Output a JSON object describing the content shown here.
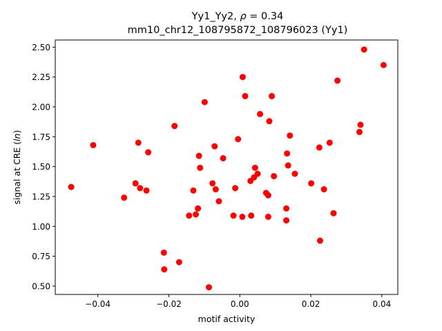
{
  "chart_data": {
    "type": "scatter",
    "title_line1": "Yy1_Yy2, ρ = 0.34",
    "title_line2": "mm10_chr12_108795872_108796023 (Yy1)",
    "xlabel": "motif activity",
    "ylabel": "signal at CRE (ln)",
    "xlim": [
      -0.052,
      0.0445
    ],
    "ylim": [
      0.43,
      2.56
    ],
    "x_ticks": [
      -0.04,
      -0.02,
      0.0,
      0.02,
      0.04
    ],
    "x_tick_labels": [
      "−0.04",
      "−0.02",
      "0.00",
      "0.02",
      "0.04"
    ],
    "y_ticks": [
      0.5,
      0.75,
      1.0,
      1.25,
      1.5,
      1.75,
      2.0,
      2.25,
      2.5
    ],
    "y_tick_labels": [
      "0.50",
      "0.75",
      "1.00",
      "1.25",
      "1.50",
      "1.75",
      "2.00",
      "2.25",
      "2.50"
    ],
    "marker_color": "#ff0000",
    "grid": false,
    "points": [
      {
        "x": -0.0475,
        "y": 1.33
      },
      {
        "x": -0.0413,
        "y": 1.68
      },
      {
        "x": -0.0326,
        "y": 1.24
      },
      {
        "x": -0.0294,
        "y": 1.36
      },
      {
        "x": -0.0286,
        "y": 1.7
      },
      {
        "x": -0.0281,
        "y": 1.32
      },
      {
        "x": -0.0263,
        "y": 1.3
      },
      {
        "x": -0.0258,
        "y": 1.62
      },
      {
        "x": -0.0214,
        "y": 0.78
      },
      {
        "x": -0.0213,
        "y": 0.64
      },
      {
        "x": -0.0184,
        "y": 1.84
      },
      {
        "x": -0.0171,
        "y": 0.7
      },
      {
        "x": -0.0143,
        "y": 1.09
      },
      {
        "x": -0.0131,
        "y": 1.3
      },
      {
        "x": -0.0124,
        "y": 1.1
      },
      {
        "x": -0.0118,
        "y": 1.15
      },
      {
        "x": -0.0115,
        "y": 1.59
      },
      {
        "x": -0.0112,
        "y": 1.49
      },
      {
        "x": -0.0099,
        "y": 2.04
      },
      {
        "x": -0.0087,
        "y": 0.49
      },
      {
        "x": -0.0077,
        "y": 1.36
      },
      {
        "x": -0.0071,
        "y": 1.67
      },
      {
        "x": -0.0068,
        "y": 1.31
      },
      {
        "x": -0.0059,
        "y": 1.21
      },
      {
        "x": -0.0047,
        "y": 1.57
      },
      {
        "x": -0.0018,
        "y": 1.09
      },
      {
        "x": -0.0013,
        "y": 1.32
      },
      {
        "x": -0.0005,
        "y": 1.73
      },
      {
        "x": 0.0007,
        "y": 1.08
      },
      {
        "x": 0.0008,
        "y": 2.25
      },
      {
        "x": 0.0015,
        "y": 2.09
      },
      {
        "x": 0.003,
        "y": 1.38
      },
      {
        "x": 0.0032,
        "y": 1.09
      },
      {
        "x": 0.004,
        "y": 1.41
      },
      {
        "x": 0.0043,
        "y": 1.49
      },
      {
        "x": 0.005,
        "y": 1.44
      },
      {
        "x": 0.0057,
        "y": 1.94
      },
      {
        "x": 0.0074,
        "y": 1.28
      },
      {
        "x": 0.008,
        "y": 1.26
      },
      {
        "x": 0.008,
        "y": 1.08
      },
      {
        "x": 0.0083,
        "y": 1.88
      },
      {
        "x": 0.009,
        "y": 2.09
      },
      {
        "x": 0.0096,
        "y": 1.42
      },
      {
        "x": 0.0131,
        "y": 1.15
      },
      {
        "x": 0.0131,
        "y": 1.05
      },
      {
        "x": 0.0133,
        "y": 1.61
      },
      {
        "x": 0.0136,
        "y": 1.51
      },
      {
        "x": 0.0141,
        "y": 1.76
      },
      {
        "x": 0.0155,
        "y": 1.44
      },
      {
        "x": 0.0201,
        "y": 1.36
      },
      {
        "x": 0.0224,
        "y": 1.66
      },
      {
        "x": 0.0226,
        "y": 0.88
      },
      {
        "x": 0.0237,
        "y": 1.31
      },
      {
        "x": 0.0253,
        "y": 1.7
      },
      {
        "x": 0.0264,
        "y": 1.11
      },
      {
        "x": 0.0275,
        "y": 2.22
      },
      {
        "x": 0.0337,
        "y": 1.79
      },
      {
        "x": 0.034,
        "y": 1.85
      },
      {
        "x": 0.035,
        "y": 2.48
      },
      {
        "x": 0.0405,
        "y": 2.35
      }
    ]
  }
}
